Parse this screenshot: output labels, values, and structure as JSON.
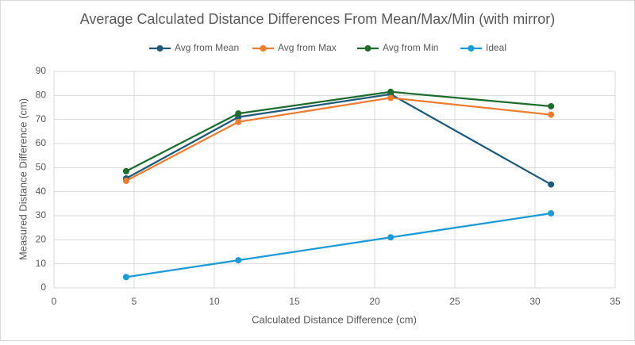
{
  "chart_data": {
    "type": "line",
    "title": "Average Calculated Distance Differences From Mean/Max/Min (with mirror)",
    "x_label": "Calculated Distance Difference (cm)",
    "y_label": "Measured Distance Difference (cm)",
    "x": [
      4.5,
      11.5,
      21,
      31
    ],
    "series": [
      {
        "name": "Avg from Mean",
        "color": "#1f5a7a",
        "values": [
          45.5,
          71,
          80.5,
          43
        ]
      },
      {
        "name": "Avg from Max",
        "color": "#ed7d31",
        "values": [
          44.5,
          69,
          79,
          72
        ]
      },
      {
        "name": "Avg from Min",
        "color": "#1e6b2e",
        "values": [
          48.5,
          72.5,
          81.5,
          75.5
        ]
      },
      {
        "name": "Ideal",
        "color": "#1b9ad6",
        "values": [
          4.5,
          11.5,
          21,
          31
        ]
      }
    ],
    "xlim": [
      0,
      35
    ],
    "xticks": [
      0,
      5,
      10,
      15,
      20,
      25,
      30,
      35
    ],
    "ylim": [
      0,
      90
    ],
    "yticks": [
      0,
      10,
      20,
      30,
      40,
      50,
      60,
      70,
      80,
      90
    ],
    "grid": true,
    "legend": "top"
  }
}
